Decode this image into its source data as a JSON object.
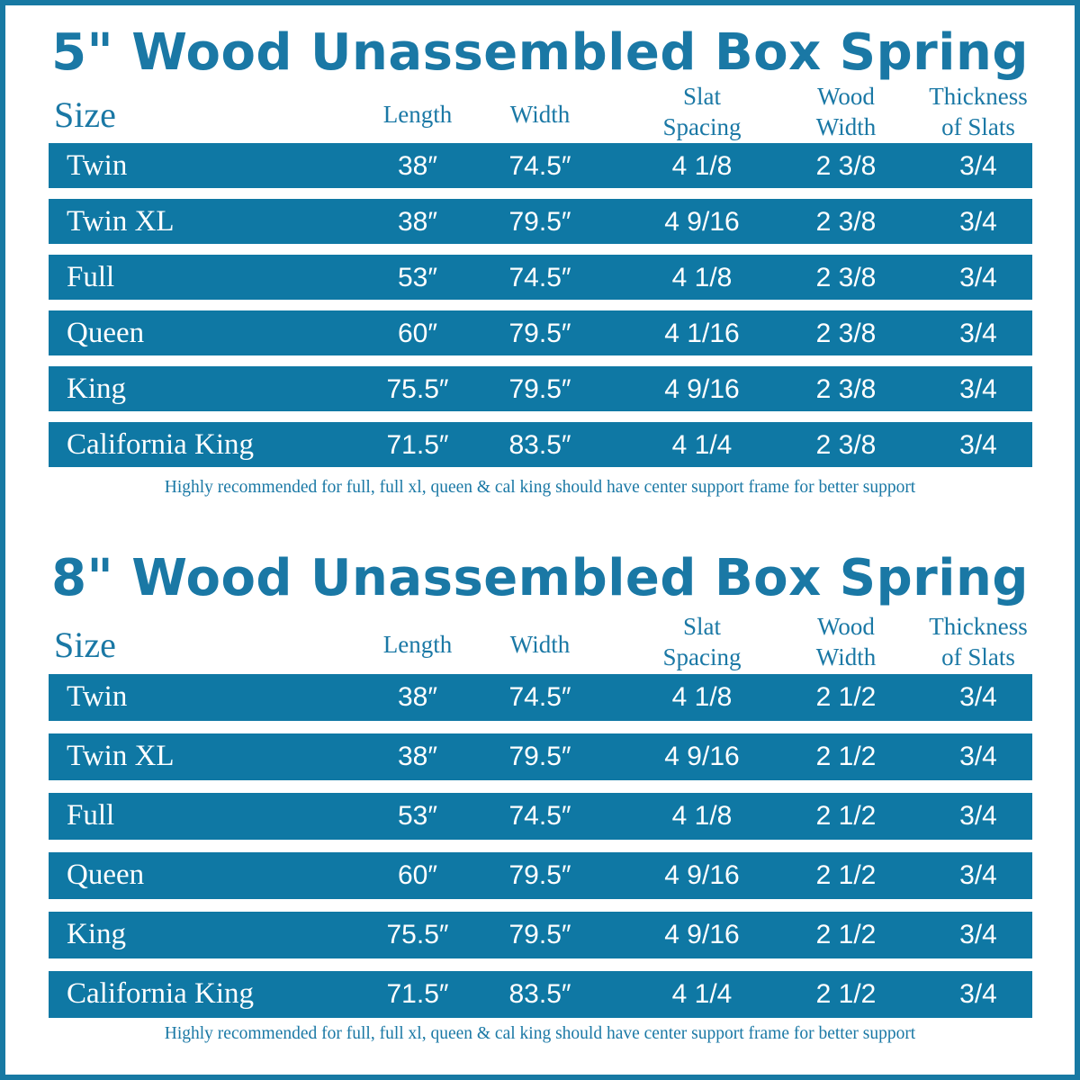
{
  "sections": [
    {
      "title": "5\" Wood Unassembled Box Spring",
      "headers": [
        [
          "Size"
        ],
        [
          "Length"
        ],
        [
          "Width"
        ],
        [
          "Slat",
          "Spacing"
        ],
        [
          "Wood",
          "Width"
        ],
        [
          "Thickness",
          "of Slats"
        ]
      ],
      "rows": [
        [
          "Twin",
          "38″",
          "74.5″",
          "4 1/8",
          "2 3/8",
          "3/4"
        ],
        [
          "Twin XL",
          "38″",
          "79.5″",
          "4 9/16",
          "2 3/8",
          "3/4"
        ],
        [
          "Full",
          "53″",
          "74.5″",
          "4 1/8",
          "2 3/8",
          "3/4"
        ],
        [
          "Queen",
          "60″",
          "79.5″",
          "4 1/16",
          "2 3/8",
          "3/4"
        ],
        [
          "King",
          "75.5″",
          "79.5″",
          "4 9/16",
          "2 3/8",
          "3/4"
        ],
        [
          "California King",
          "71.5″",
          "83.5″",
          "4 1/4",
          "2 3/8",
          "3/4"
        ]
      ],
      "note": "Highly recommended for full, full xl, queen & cal king should have center support frame  for better support"
    },
    {
      "title": "8\" Wood Unassembled Box Spring",
      "headers": [
        [
          "Size"
        ],
        [
          "Length"
        ],
        [
          "Width"
        ],
        [
          "Slat",
          "Spacing"
        ],
        [
          "Wood",
          "Width"
        ],
        [
          "Thickness",
          "of Slats"
        ]
      ],
      "rows": [
        [
          "Twin",
          "38″",
          "74.5″",
          "4 1/8",
          "2 1/2",
          "3/4"
        ],
        [
          "Twin XL",
          "38″",
          "79.5″",
          "4 9/16",
          "2 1/2",
          "3/4"
        ],
        [
          "Full",
          "53″",
          "74.5″",
          "4 1/8",
          "2 1/2",
          "3/4"
        ],
        [
          "Queen",
          "60″",
          "79.5″",
          "4 9/16",
          "2 1/2",
          "3/4"
        ],
        [
          "King",
          "75.5″",
          "79.5″",
          "4 9/16",
          "2 1/2",
          "3/4"
        ],
        [
          "California King",
          "71.5″",
          "83.5″",
          "4 1/4",
          "2 1/2",
          "3/4"
        ]
      ],
      "note": "Highly recommended for full, full xl, queen & cal king should have center support frame  for better support"
    }
  ]
}
